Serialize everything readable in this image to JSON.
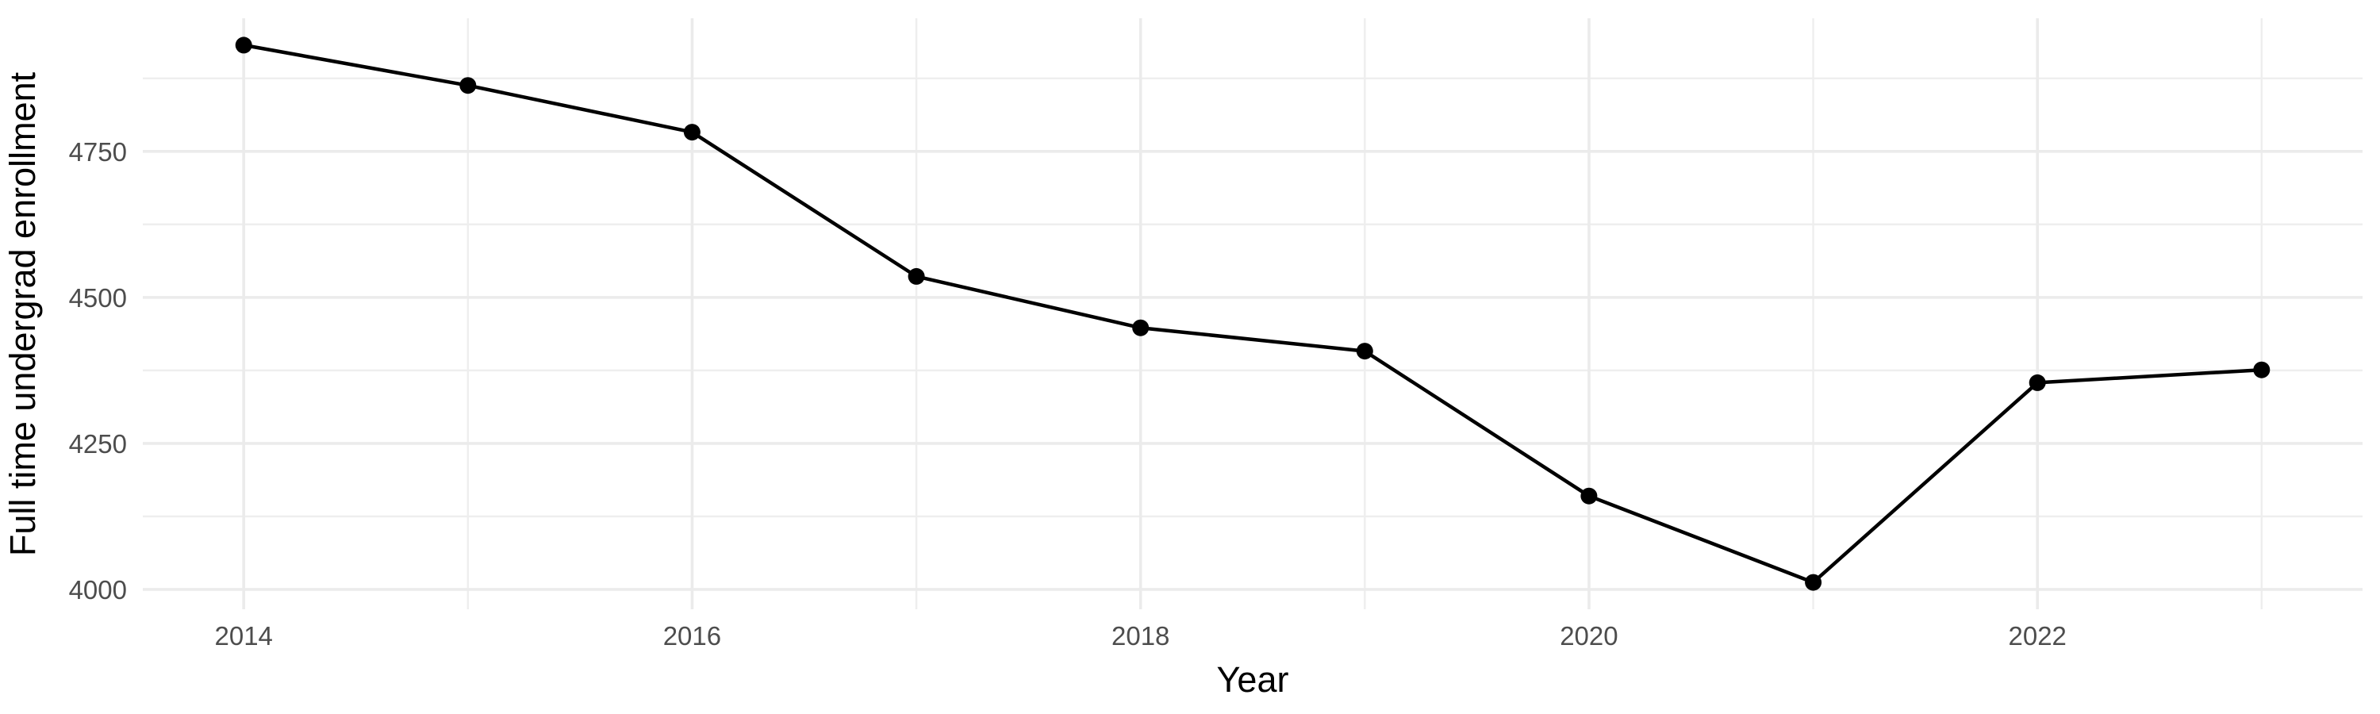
{
  "chart_data": {
    "type": "line",
    "title": "",
    "xlabel": "Year",
    "ylabel": "Full time undergrad enrollment",
    "x": [
      2014,
      2015,
      2016,
      2017,
      2018,
      2019,
      2020,
      2021,
      2022,
      2023
    ],
    "values": [
      4932,
      4863,
      4783,
      4536,
      4448,
      4408,
      4160,
      4012,
      4354,
      4376
    ],
    "series_name": "Full time undergrad enrollment",
    "xlim": [
      2013.55,
      2023.45
    ],
    "ylim": [
      3966,
      4978
    ],
    "x_ticks": [
      2014,
      2016,
      2018,
      2020,
      2022
    ],
    "y_ticks": [
      4000,
      4250,
      4500,
      4750
    ],
    "x_minor_ticks": [
      2015,
      2017,
      2019,
      2021,
      2023
    ],
    "y_minor_ticks": [
      4125,
      4375,
      4625,
      4875
    ],
    "grid": true,
    "legend": "none",
    "colors": {
      "line": "#000000",
      "point": "#000000",
      "grid_major": "#ebebeb",
      "grid_minor": "#eeeeee",
      "tick_label": "#4d4d4d",
      "axis_title": "#000000",
      "background": "#ffffff"
    }
  }
}
